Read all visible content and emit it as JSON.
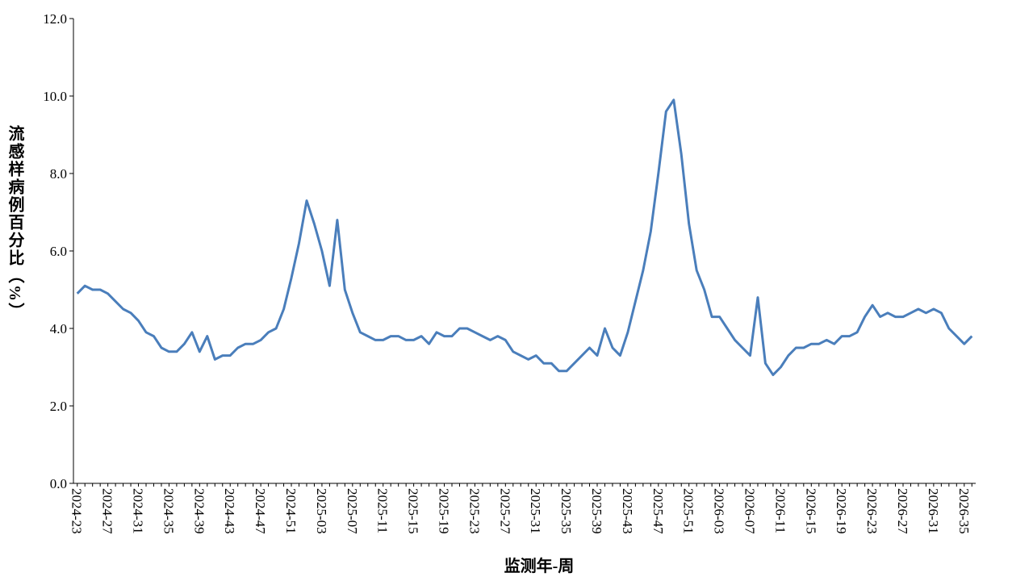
{
  "chart_data": {
    "type": "line",
    "ylabel": "流感样病例百分比（%）",
    "xlabel": "监测年-周",
    "categories": [
      "2024-23",
      null,
      null,
      null,
      "2024-27",
      null,
      null,
      null,
      "2024-31",
      null,
      null,
      null,
      "2024-35",
      null,
      null,
      null,
      "2024-39",
      null,
      null,
      null,
      "2024-43",
      null,
      null,
      null,
      "2024-47",
      null,
      null,
      null,
      "2024-51",
      null,
      null,
      null,
      "2025-03",
      null,
      null,
      null,
      "2025-07",
      null,
      null,
      null,
      "2025-11",
      null,
      null,
      null,
      "2025-15",
      null,
      null,
      null,
      "2025-19",
      null,
      null,
      null,
      "2025-23",
      null,
      null,
      null,
      "2025-27",
      null,
      null,
      null,
      "2025-31",
      null,
      null,
      null,
      "2025-35",
      null,
      null,
      null,
      "2025-39",
      null,
      null,
      null,
      "2025-43",
      null,
      null,
      null,
      "2025-47",
      null,
      null,
      null,
      "2025-51",
      null,
      null,
      null,
      "2026-03",
      null,
      null,
      null,
      "2026-07",
      null,
      null,
      null,
      "2026-11",
      null,
      null,
      null,
      "2026-15",
      null,
      null,
      null,
      "2026-19",
      null,
      null,
      null,
      "2026-23",
      null,
      null,
      null,
      "2026-27",
      null,
      null,
      null,
      "2026-31",
      null,
      null,
      null,
      "2026-35",
      null
    ],
    "series": [
      {
        "name": "流感样病例百分比",
        "color": "#4a7ebb",
        "values": [
          4.9,
          5.1,
          5.0,
          5.0,
          4.9,
          4.7,
          4.5,
          4.4,
          4.2,
          3.9,
          3.8,
          3.5,
          3.4,
          3.4,
          3.6,
          3.9,
          3.4,
          3.8,
          3.2,
          3.3,
          3.3,
          3.5,
          3.6,
          3.6,
          3.7,
          3.9,
          4.0,
          4.5,
          5.3,
          6.2,
          7.3,
          6.7,
          6.0,
          5.1,
          6.8,
          5.0,
          4.4,
          3.9,
          3.8,
          3.7,
          3.7,
          3.8,
          3.8,
          3.7,
          3.7,
          3.8,
          3.6,
          3.9,
          3.8,
          3.8,
          4.0,
          4.0,
          3.9,
          3.8,
          3.7,
          3.8,
          3.7,
          3.4,
          3.3,
          3.2,
          3.3,
          3.1,
          3.1,
          2.9,
          2.9,
          3.1,
          3.3,
          3.5,
          3.3,
          4.0,
          3.5,
          3.3,
          3.9,
          4.7,
          5.5,
          6.5,
          8.0,
          9.6,
          9.9,
          8.5,
          6.7,
          5.5,
          5.0,
          4.3,
          4.3,
          4.0,
          3.7,
          3.5,
          3.3,
          4.8,
          3.1,
          2.8,
          3.0,
          3.3,
          3.5,
          3.5,
          3.6,
          3.6,
          3.7,
          3.6,
          3.8,
          3.8,
          3.9,
          4.3,
          4.6,
          4.3,
          4.4,
          4.3,
          4.3,
          4.4,
          4.5,
          4.4,
          4.5,
          4.4,
          4.0,
          3.8,
          3.6,
          3.8
        ]
      }
    ],
    "ylim": [
      0,
      12
    ],
    "yticks": [
      {
        "value": 0,
        "label": "0.0"
      },
      {
        "value": 2,
        "label": "2.0"
      },
      {
        "value": 4,
        "label": "4.0"
      },
      {
        "value": 6,
        "label": "6.0"
      },
      {
        "value": 8,
        "label": "8.0"
      },
      {
        "value": 10,
        "label": "10.0"
      },
      {
        "value": 12,
        "label": "12.0"
      }
    ],
    "grid": false
  }
}
